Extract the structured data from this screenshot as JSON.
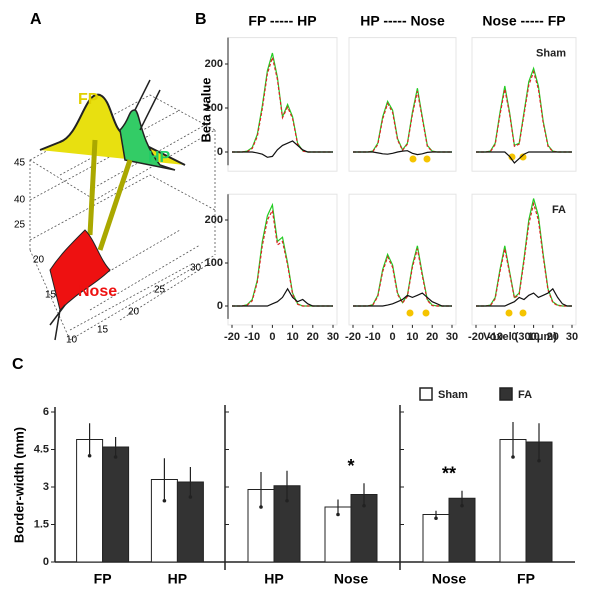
{
  "panel_letters": [
    "A",
    "B",
    "C"
  ],
  "panel_a": {
    "labels": [
      "FP",
      "HP",
      "Nose"
    ],
    "axis_labels": [
      "45",
      "40",
      "25",
      "20",
      "15",
      "10",
      "15",
      "20",
      "25",
      "30"
    ]
  },
  "chart_data": [
    {
      "type": "line",
      "title": "FP ----- HP",
      "ylabel": "Beta value",
      "x": [
        -20,
        -17.5,
        -15,
        -12.5,
        -10,
        -7.5,
        -5,
        -2.5,
        0,
        2.5,
        5,
        7.5,
        10,
        12.5,
        15,
        17.5,
        20,
        22.5,
        25,
        27.5,
        30
      ],
      "xlim": [
        -20,
        30
      ],
      "ylim": [
        -30,
        260
      ],
      "yticks": [
        0,
        100,
        200
      ],
      "series": [
        {
          "color": "#22cc22",
          "values": [
            0,
            0,
            0,
            2,
            10,
            40,
            105,
            185,
            225,
            170,
            80,
            108,
            80,
            20,
            3,
            0,
            0,
            0,
            0,
            0,
            0
          ]
        },
        {
          "color": "#dd2222",
          "dash": true,
          "values": [
            0,
            0,
            0,
            1,
            8,
            35,
            98,
            178,
            215,
            165,
            78,
            102,
            76,
            18,
            2,
            0,
            0,
            0,
            0,
            0,
            0
          ]
        },
        {
          "color": "#111111",
          "values": [
            0,
            0,
            0,
            0,
            0,
            -2,
            -5,
            -12,
            -10,
            5,
            15,
            20,
            25,
            15,
            5,
            0,
            0,
            0,
            0,
            0,
            0
          ]
        }
      ]
    },
    {
      "type": "line",
      "title": "HP ----- Nose",
      "x": [
        -20,
        -17.5,
        -15,
        -12.5,
        -10,
        -7.5,
        -5,
        -2.5,
        0,
        2.5,
        5,
        7.5,
        10,
        12.5,
        15,
        17.5,
        20,
        22.5,
        25,
        27.5,
        30
      ],
      "xlim": [
        -20,
        30
      ],
      "ylim": [
        -30,
        260
      ],
      "series": [
        {
          "color": "#22cc22",
          "values": [
            0,
            0,
            0,
            0,
            2,
            20,
            80,
            115,
            95,
            30,
            5,
            20,
            90,
            145,
            80,
            15,
            2,
            0,
            0,
            0,
            0
          ]
        },
        {
          "color": "#dd2222",
          "dash": true,
          "values": [
            0,
            0,
            0,
            0,
            1,
            17,
            75,
            110,
            90,
            27,
            4,
            18,
            85,
            138,
            76,
            13,
            1,
            0,
            0,
            0,
            0
          ]
        },
        {
          "color": "#111111",
          "values": [
            0,
            0,
            0,
            0,
            0,
            -2,
            -4,
            -5,
            -3,
            0,
            2,
            3,
            -3,
            -6,
            -4,
            -1,
            0,
            0,
            0,
            0,
            0
          ]
        }
      ]
    },
    {
      "type": "line",
      "title": "Nose ----- FP",
      "annotation": "Sham",
      "x": [
        -20,
        -17.5,
        -15,
        -12.5,
        -10,
        -7.5,
        -5,
        -2.5,
        0,
        2.5,
        5,
        7.5,
        10,
        12.5,
        15,
        17.5,
        20,
        22.5,
        25,
        27.5,
        30
      ],
      "xlim": [
        -20,
        30
      ],
      "ylim": [
        -30,
        260
      ],
      "series": [
        {
          "color": "#22cc22",
          "values": [
            0,
            0,
            0,
            2,
            20,
            90,
            150,
            90,
            15,
            20,
            90,
            160,
            190,
            150,
            70,
            15,
            2,
            0,
            0,
            0,
            0
          ]
        },
        {
          "color": "#dd2222",
          "dash": true,
          "values": [
            0,
            0,
            0,
            1,
            17,
            85,
            143,
            86,
            13,
            18,
            85,
            152,
            182,
            143,
            66,
            13,
            1,
            0,
            0,
            0,
            0
          ]
        },
        {
          "color": "#111111",
          "values": [
            0,
            0,
            0,
            0,
            0,
            0,
            0,
            -10,
            -25,
            -15,
            -5,
            0,
            0,
            0,
            0,
            0,
            0,
            0,
            0,
            0,
            0
          ]
        }
      ]
    },
    {
      "type": "line",
      "x": [
        -20,
        -17.5,
        -15,
        -12.5,
        -10,
        -7.5,
        -5,
        -2.5,
        0,
        2.5,
        5,
        7.5,
        10,
        12.5,
        15,
        17.5,
        20,
        22.5,
        25,
        27.5,
        30
      ],
      "xlim": [
        -20,
        30
      ],
      "ylim": [
        -30,
        260
      ],
      "yticks": [
        0,
        100,
        200
      ],
      "xticks": [
        -20,
        -10,
        0,
        10,
        20,
        30
      ],
      "series": [
        {
          "color": "#22cc22",
          "values": [
            0,
            0,
            0,
            3,
            15,
            60,
            150,
            210,
            235,
            150,
            160,
            100,
            30,
            5,
            0,
            0,
            0,
            0,
            0,
            0,
            0
          ]
        },
        {
          "color": "#dd2222",
          "dash": true,
          "values": [
            0,
            0,
            0,
            2,
            12,
            55,
            140,
            200,
            222,
            142,
            150,
            95,
            27,
            4,
            0,
            0,
            0,
            0,
            0,
            0,
            0
          ]
        },
        {
          "color": "#111111",
          "values": [
            0,
            0,
            0,
            0,
            0,
            0,
            0,
            0,
            5,
            10,
            20,
            40,
            20,
            10,
            15,
            5,
            0,
            0,
            0,
            0,
            0
          ]
        }
      ]
    },
    {
      "type": "line",
      "x": [
        -20,
        -17.5,
        -15,
        -12.5,
        -10,
        -7.5,
        -5,
        -2.5,
        0,
        2.5,
        5,
        7.5,
        10,
        12.5,
        15,
        17.5,
        20,
        22.5,
        25,
        27.5,
        30
      ],
      "xlim": [
        -20,
        30
      ],
      "ylim": [
        -30,
        260
      ],
      "xticks": [
        -20,
        -10,
        0,
        10,
        20,
        30
      ],
      "series": [
        {
          "color": "#22cc22",
          "values": [
            0,
            0,
            0,
            0,
            3,
            25,
            85,
            120,
            95,
            30,
            8,
            25,
            95,
            140,
            75,
            15,
            2,
            0,
            0,
            0,
            0
          ]
        },
        {
          "color": "#dd2222",
          "dash": true,
          "values": [
            0,
            0,
            0,
            0,
            2,
            22,
            80,
            114,
            90,
            27,
            7,
            22,
            90,
            133,
            70,
            13,
            1,
            0,
            0,
            0,
            0
          ]
        },
        {
          "color": "#111111",
          "values": [
            0,
            0,
            0,
            0,
            0,
            0,
            0,
            2,
            5,
            10,
            15,
            25,
            20,
            25,
            30,
            20,
            10,
            5,
            0,
            0,
            0
          ]
        }
      ]
    },
    {
      "type": "line",
      "annotation": "FA",
      "xlabel": "Voxel (300μm)",
      "x": [
        -20,
        -17.5,
        -15,
        -12.5,
        -10,
        -7.5,
        -5,
        -2.5,
        0,
        2.5,
        5,
        7.5,
        10,
        12.5,
        15,
        17.5,
        20,
        22.5,
        25,
        27.5,
        30
      ],
      "xlim": [
        -20,
        30
      ],
      "ylim": [
        -30,
        260
      ],
      "xticks": [
        -20,
        -10,
        0,
        10,
        20,
        30
      ],
      "series": [
        {
          "color": "#22cc22",
          "values": [
            0,
            0,
            0,
            2,
            20,
            85,
            140,
            80,
            20,
            30,
            110,
            200,
            250,
            210,
            120,
            40,
            10,
            2,
            0,
            0,
            0
          ]
        },
        {
          "color": "#dd2222",
          "dash": true,
          "values": [
            0,
            0,
            0,
            1,
            17,
            80,
            133,
            76,
            18,
            27,
            104,
            190,
            238,
            200,
            114,
            37,
            8,
            1,
            0,
            0,
            0
          ]
        },
        {
          "color": "#111111",
          "values": [
            0,
            0,
            0,
            0,
            0,
            0,
            0,
            5,
            10,
            20,
            15,
            25,
            30,
            20,
            25,
            30,
            40,
            20,
            5,
            0,
            0
          ]
        }
      ]
    },
    {
      "type": "bar",
      "ylabel": "Border-width (mm)",
      "categories": [
        "FP",
        "HP",
        "HP",
        "Nose",
        "Nose",
        "FP"
      ],
      "ylim": [
        0,
        6
      ],
      "yticks": [
        0,
        1.5,
        3,
        4.5,
        6
      ],
      "annotations": [
        "*",
        "**"
      ],
      "series": [
        {
          "name": "Sham",
          "color": "#ffffff",
          "values": [
            4.9,
            3.3,
            2.9,
            2.2,
            1.9,
            4.9
          ],
          "errors": [
            0.65,
            0.85,
            0.7,
            0.3,
            0.15,
            0.7
          ]
        },
        {
          "name": "FA",
          "color": "#333333",
          "values": [
            4.6,
            3.2,
            3.05,
            2.7,
            2.55,
            4.8
          ],
          "errors": [
            0.4,
            0.6,
            0.6,
            0.45,
            0.3,
            0.75
          ]
        }
      ]
    }
  ]
}
